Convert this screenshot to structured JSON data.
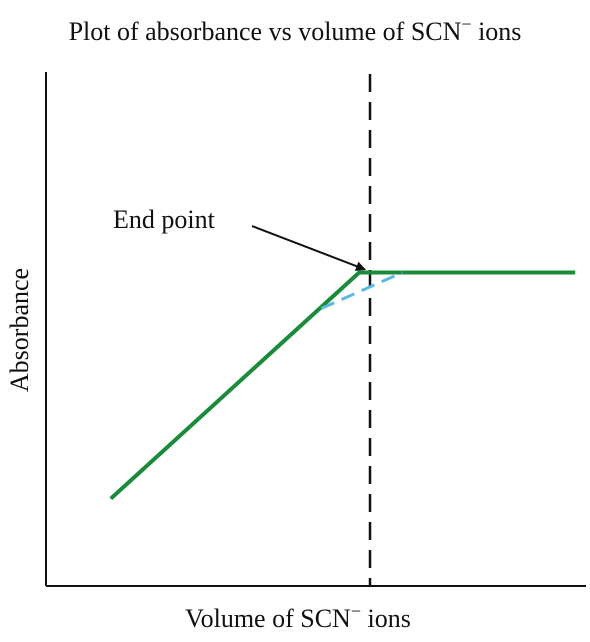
{
  "chart_data": {
    "type": "line",
    "title": "Plot of absorbance vs volume of SCN",
    "title_superscript": "−",
    "title_suffix": " ions",
    "xlabel": "Volume of SCN",
    "xlabel_superscript": "−",
    "xlabel_suffix": " ions",
    "ylabel": "Absorbance",
    "xlim": [
      0,
      100
    ],
    "ylim": [
      0,
      100
    ],
    "ticks": "none",
    "grid": false,
    "legend": "none",
    "series": [
      {
        "style": "solid",
        "color": "#1b8a3a",
        "points": [
          [
            12,
            17
          ],
          [
            58,
            61
          ],
          [
            62,
            61
          ],
          [
            98,
            61
          ]
        ]
      },
      {
        "style": "dashed",
        "color": "#5bb8e0",
        "points": [
          [
            51,
            54
          ],
          [
            66,
            61
          ]
        ]
      }
    ],
    "vertical_marker": {
      "x": 60,
      "style": "dashed",
      "color": "#111111"
    },
    "annotation": {
      "text": "End point",
      "target": [
        60,
        61
      ]
    }
  }
}
